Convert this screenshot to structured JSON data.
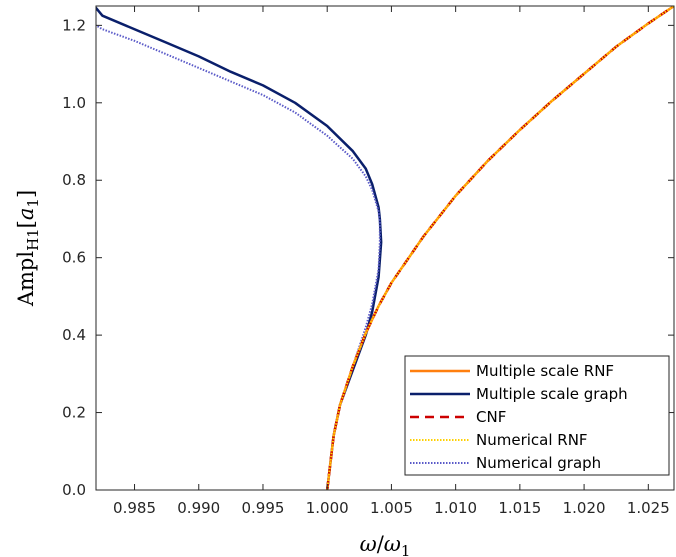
{
  "chart_data": {
    "type": "line",
    "title": "",
    "xlabel": "ω/ω₁",
    "ylabel": "Ampl_H1[a₁]",
    "xlim": [
      0.982,
      1.027
    ],
    "ylim": [
      0.0,
      1.25
    ],
    "grid": false,
    "legend_position": "bottom-right",
    "x_ticks": [
      "0.985",
      "0.990",
      "0.995",
      "1.000",
      "1.005",
      "1.010",
      "1.015",
      "1.020",
      "1.025"
    ],
    "x_tick_values": [
      0.985,
      0.99,
      0.995,
      1.0,
      1.005,
      1.01,
      1.015,
      1.02,
      1.025
    ],
    "y_ticks": [
      "0.0",
      "0.2",
      "0.4",
      "0.6",
      "0.8",
      "1.0",
      "1.2"
    ],
    "y_tick_values": [
      0.0,
      0.2,
      0.4,
      0.6,
      0.8,
      1.0,
      1.2
    ],
    "series": [
      {
        "name": "Multiple scale RNF",
        "color": "#ff7f0e",
        "style": "solid",
        "x": [
          1.0,
          1.0005,
          1.001,
          1.002,
          1.003,
          1.004,
          1.005,
          1.0075,
          1.01,
          1.0125,
          1.015,
          1.0175,
          1.02,
          1.0225,
          1.025,
          1.027
        ],
        "y": [
          0.0,
          0.14,
          0.22,
          0.32,
          0.405,
          0.475,
          0.535,
          0.655,
          0.76,
          0.85,
          0.93,
          1.005,
          1.075,
          1.145,
          1.205,
          1.25
        ]
      },
      {
        "name": "Multiple scale graph",
        "color": "#0a1f6b",
        "style": "solid",
        "x": [
          1.0,
          1.0005,
          1.001,
          1.002,
          1.003,
          1.0035,
          1.004,
          1.0042,
          1.0041,
          1.004,
          1.0035,
          1.003,
          1.002,
          1.0,
          0.9975,
          0.995,
          0.9925,
          0.99,
          0.9875,
          0.985,
          0.9825,
          0.982
        ],
        "y": [
          0.0,
          0.14,
          0.22,
          0.31,
          0.4,
          0.46,
          0.55,
          0.64,
          0.7,
          0.73,
          0.79,
          0.83,
          0.875,
          0.94,
          1.0,
          1.045,
          1.08,
          1.12,
          1.155,
          1.19,
          1.225,
          1.245
        ]
      },
      {
        "name": "CNF",
        "color": "#cc0000",
        "style": "dashed",
        "x": [
          1.0,
          1.0005,
          1.001,
          1.002,
          1.003,
          1.004,
          1.005,
          1.0075,
          1.01,
          1.0125,
          1.015,
          1.0175,
          1.02,
          1.0225,
          1.025,
          1.027
        ],
        "y": [
          0.0,
          0.14,
          0.22,
          0.32,
          0.405,
          0.475,
          0.535,
          0.655,
          0.76,
          0.85,
          0.93,
          1.005,
          1.075,
          1.145,
          1.205,
          1.25
        ]
      },
      {
        "name": "Numerical RNF",
        "color": "#ffd000",
        "style": "dotted",
        "x": [
          1.0,
          1.0005,
          1.001,
          1.002,
          1.003,
          1.004,
          1.005,
          1.0075,
          1.01,
          1.0125,
          1.015,
          1.0175,
          1.02,
          1.0225,
          1.025,
          1.027
        ],
        "y": [
          0.0,
          0.14,
          0.22,
          0.32,
          0.405,
          0.475,
          0.535,
          0.655,
          0.76,
          0.85,
          0.93,
          1.005,
          1.075,
          1.145,
          1.205,
          1.25
        ]
      },
      {
        "name": "Numerical graph",
        "color": "#5a5ac8",
        "style": "dotted",
        "x": [
          1.0,
          1.0005,
          1.001,
          1.002,
          1.003,
          1.0035,
          1.004,
          1.0041,
          1.0041,
          1.004,
          1.0035,
          1.003,
          1.002,
          1.0,
          0.9975,
          0.995,
          0.9925,
          0.99,
          0.9875,
          0.985,
          0.9825,
          0.982
        ],
        "y": [
          0.0,
          0.14,
          0.22,
          0.32,
          0.42,
          0.48,
          0.57,
          0.64,
          0.69,
          0.72,
          0.775,
          0.81,
          0.855,
          0.915,
          0.975,
          1.02,
          1.055,
          1.09,
          1.125,
          1.16,
          1.19,
          1.2
        ]
      }
    ]
  }
}
